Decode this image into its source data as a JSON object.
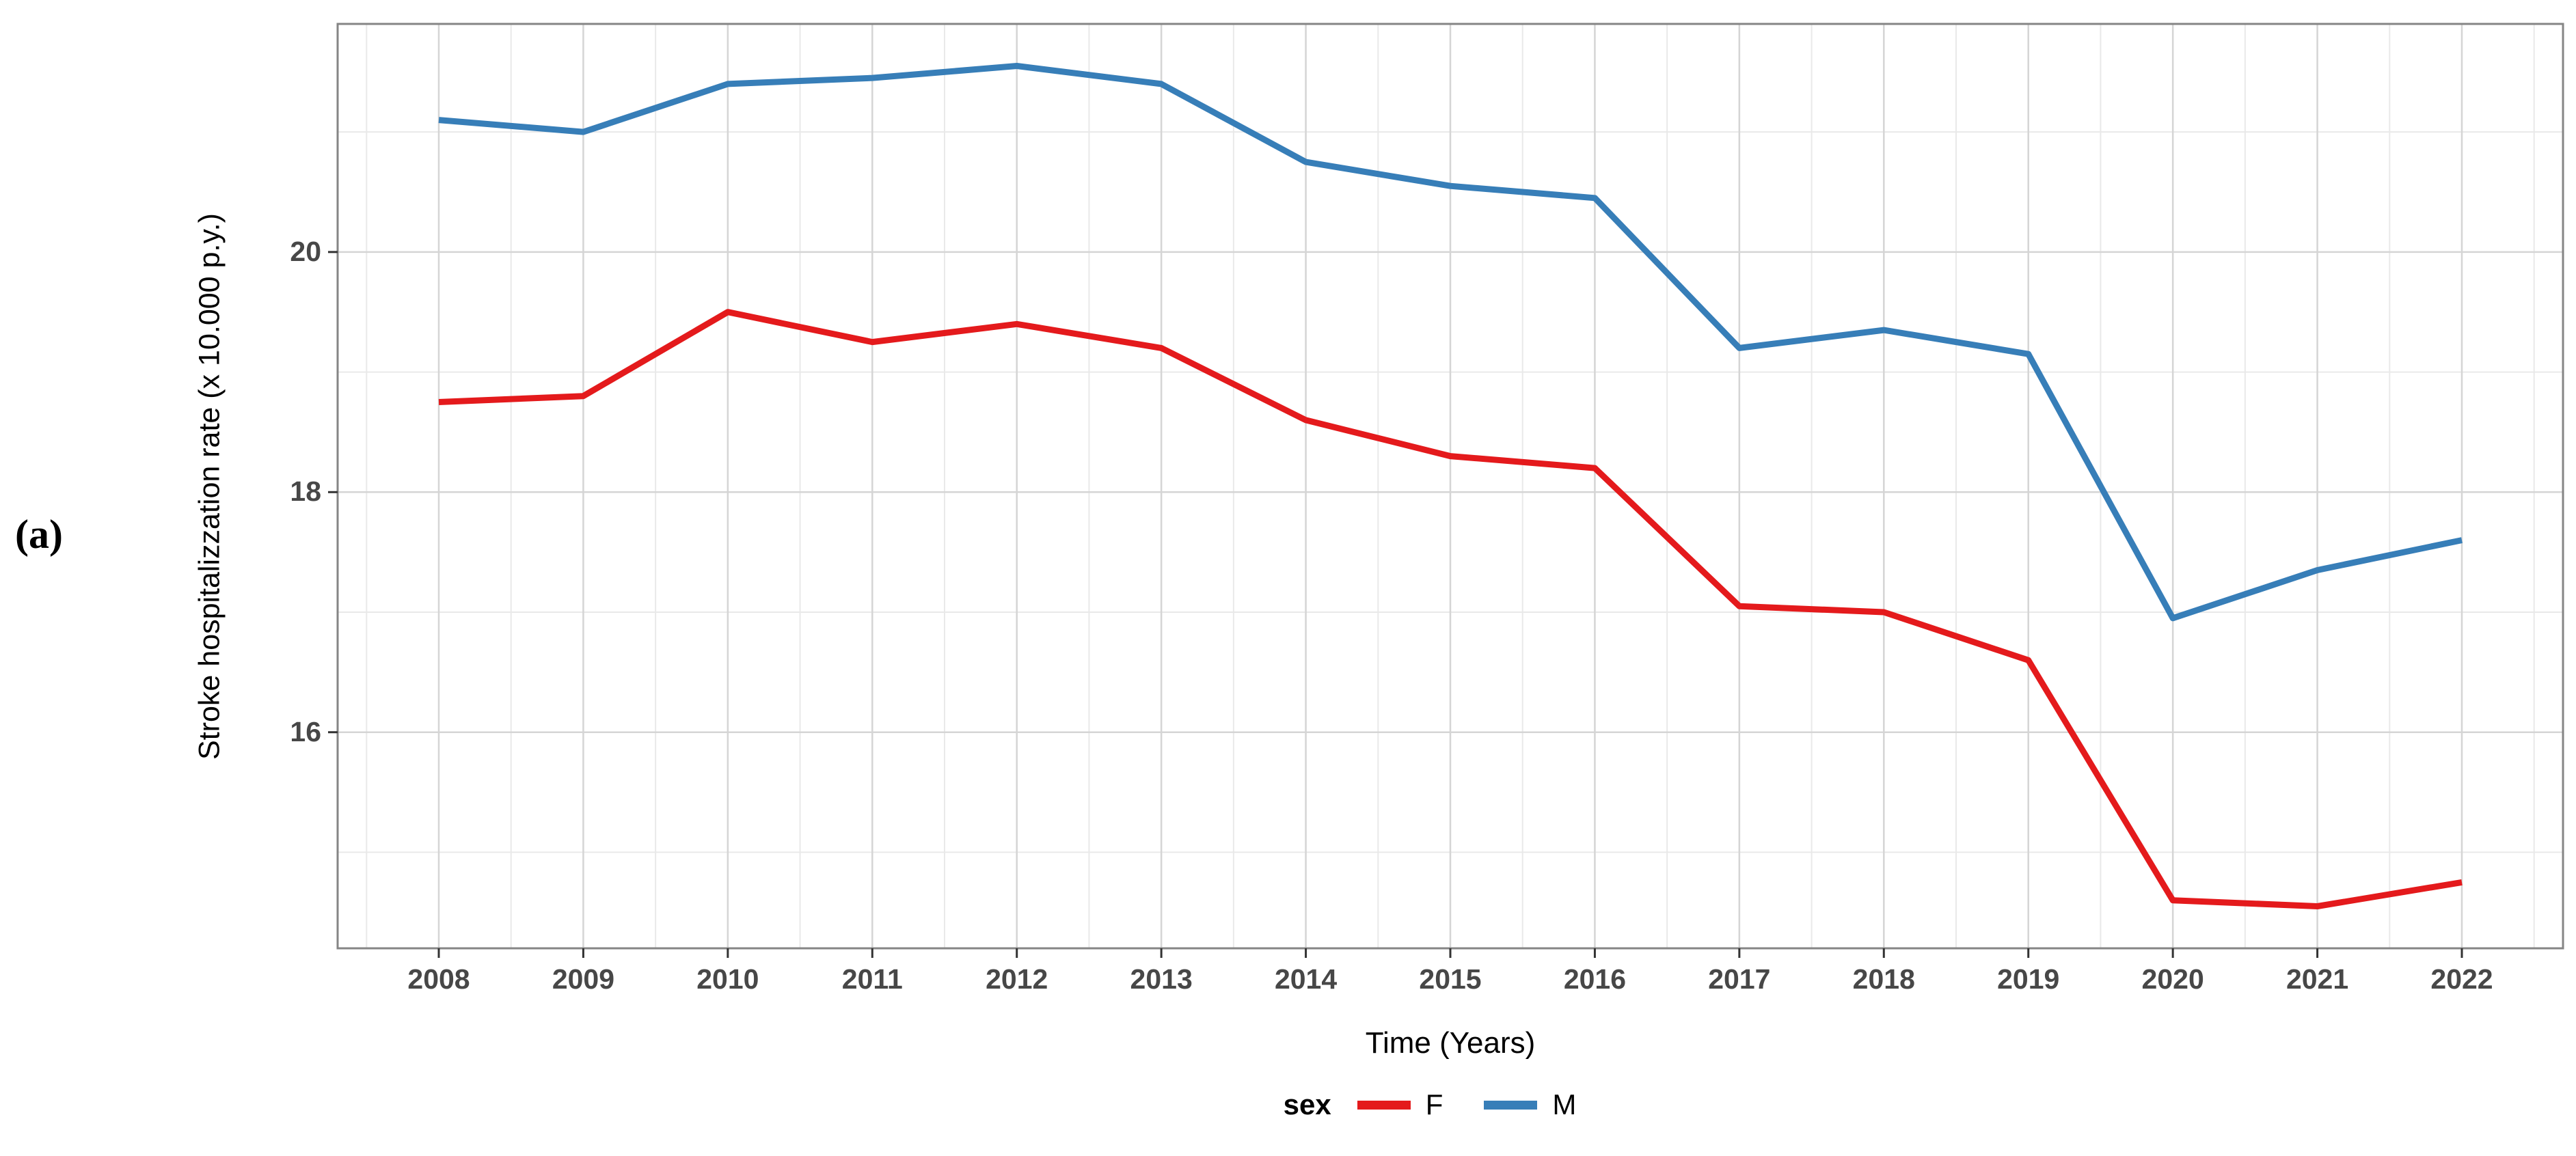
{
  "figure": {
    "panel_label": "(a)"
  },
  "chart_data": {
    "type": "line",
    "title": "",
    "xlabel": "Time (Years)",
    "ylabel": "Stroke hospitalizzation rate (x 10.000 p.y.)",
    "legend_title": "sex",
    "legend_position": "bottom",
    "grid": "on",
    "x": [
      2008,
      2009,
      2010,
      2011,
      2012,
      2013,
      2014,
      2015,
      2016,
      2017,
      2018,
      2019,
      2020,
      2021,
      2022
    ],
    "series": [
      {
        "name": "F",
        "color": "#E41A1C",
        "values": [
          18.75,
          18.8,
          19.5,
          19.25,
          19.4,
          19.2,
          18.6,
          18.3,
          18.2,
          17.05,
          17.0,
          16.6,
          14.6,
          14.55,
          14.75
        ]
      },
      {
        "name": "M",
        "color": "#377EB8",
        "values": [
          21.1,
          21.0,
          21.4,
          21.45,
          21.55,
          21.4,
          20.75,
          20.55,
          20.45,
          19.2,
          19.35,
          19.15,
          16.95,
          17.35,
          17.6
        ]
      }
    ],
    "y_major_ticks": [
      16,
      18,
      20
    ],
    "y_minor_ticks": [
      15,
      17,
      19,
      21
    ],
    "x_minor_step": 0.5,
    "ylim": [
      14.2,
      21.9
    ],
    "xlim": [
      2007.3,
      2022.7
    ],
    "colors": {
      "grid_major": "#D5D5D5",
      "grid_minor": "#E9E9E9",
      "panel_border": "#858585",
      "tick_mark": "#333333",
      "tick_text": "#474747"
    }
  }
}
